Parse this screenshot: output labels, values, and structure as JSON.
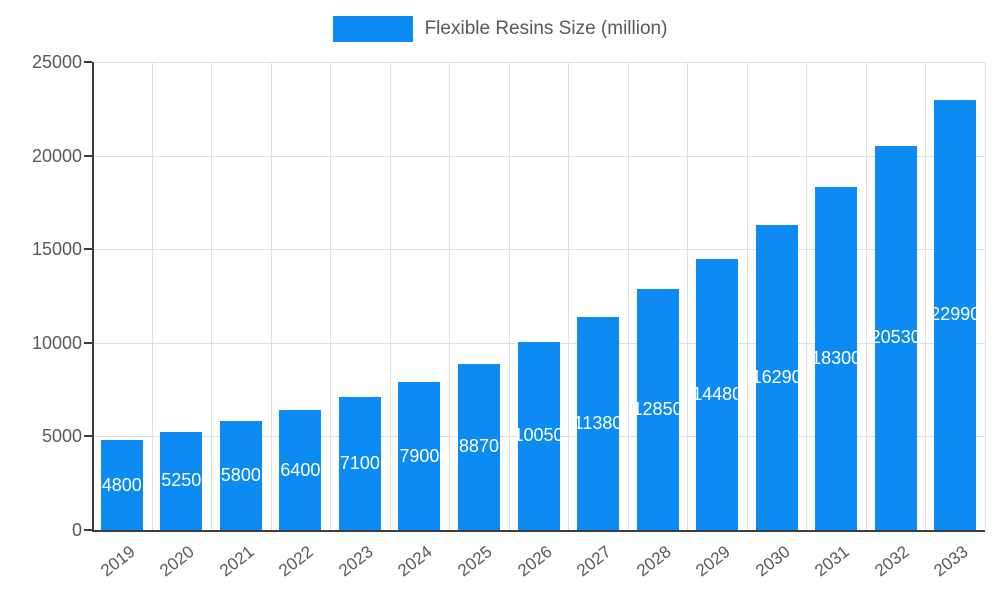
{
  "legend": {
    "label": "Flexible Resins Size (million)"
  },
  "colors": {
    "bar": "#0d8bf4",
    "value_label": "#ffffff",
    "axis_text": "#595959",
    "axis_line": "#3c3c3c",
    "grid": "#e0e0e0"
  },
  "chart_data": {
    "type": "bar",
    "title": "Flexible Resins Size (million)",
    "legend_position": "top",
    "categories": [
      "2019",
      "2020",
      "2021",
      "2022",
      "2023",
      "2024",
      "2025",
      "2026",
      "2027",
      "2028",
      "2029",
      "2030",
      "2031",
      "2032",
      "2033"
    ],
    "values": [
      4800,
      5250,
      5800,
      6400,
      7100,
      7900,
      8870,
      10050,
      11380,
      12850,
      14480,
      16290,
      18300,
      20530,
      22990
    ],
    "xlabel": "",
    "ylabel": "",
    "ylim": [
      0,
      25000
    ],
    "yticks": [
      0,
      5000,
      10000,
      15000,
      20000,
      25000
    ],
    "grid": true,
    "value_labels": "inside-center",
    "x_label_rotation": -38
  }
}
